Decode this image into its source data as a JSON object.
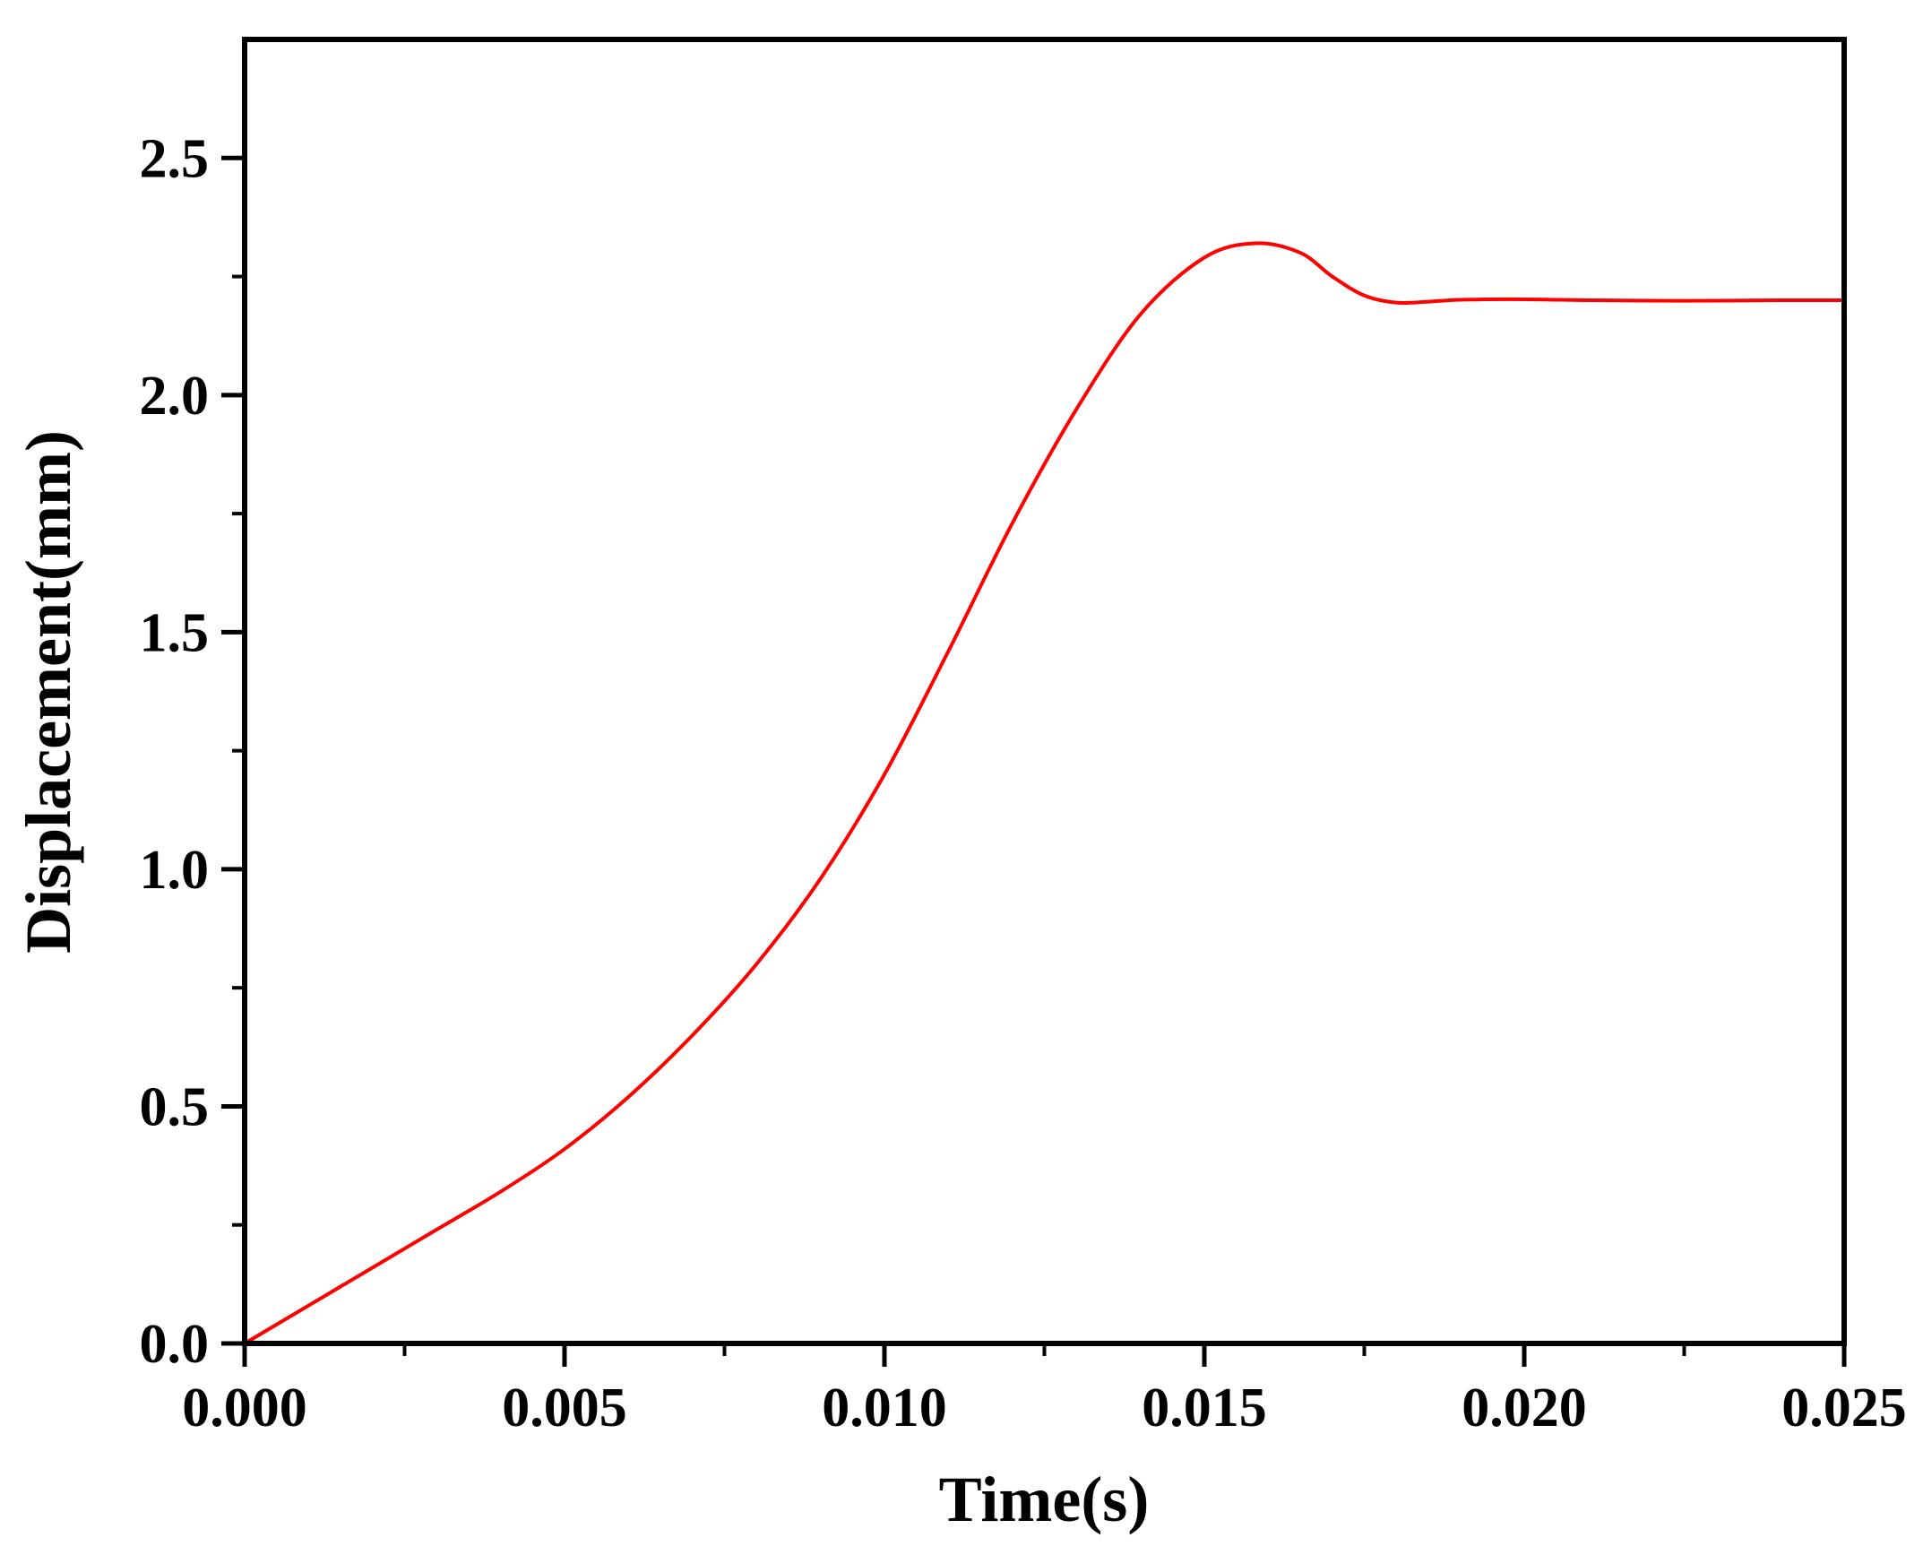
{
  "chart_data": {
    "type": "line",
    "title": "",
    "xlabel": "Time(s)",
    "ylabel": "Displacement(mm)",
    "xlim": [
      0,
      0.025
    ],
    "ylim": [
      0,
      2.75
    ],
    "x_ticks": [
      0,
      0.005,
      0.01,
      0.015,
      0.02,
      0.025
    ],
    "x_tick_labels": [
      "0.000",
      "0.005",
      "0.010",
      "0.015",
      "0.020",
      "0.025"
    ],
    "y_ticks": [
      0,
      0.5,
      1.0,
      1.5,
      2.0,
      2.5
    ],
    "y_tick_labels": [
      "0.0",
      "0.5",
      "1.0",
      "1.5",
      "2.0",
      "2.5"
    ],
    "grid": false,
    "legend": "none",
    "series": [
      {
        "color": "#ff0000",
        "x": [
          0,
          0.001,
          0.002,
          0.003,
          0.004,
          0.005,
          0.006,
          0.007,
          0.008,
          0.009,
          0.01,
          0.011,
          0.012,
          0.013,
          0.014,
          0.015,
          0.0158,
          0.0165,
          0.017,
          0.0175,
          0.018,
          0.0185,
          0.019,
          0.02,
          0.021,
          0.022,
          0.023,
          0.024,
          0.025
        ],
        "y": [
          0,
          0.08,
          0.16,
          0.24,
          0.32,
          0.41,
          0.52,
          0.65,
          0.8,
          0.98,
          1.2,
          1.46,
          1.73,
          1.97,
          2.17,
          2.29,
          2.32,
          2.3,
          2.25,
          2.21,
          2.195,
          2.197,
          2.201,
          2.202,
          2.2,
          2.199,
          2.199,
          2.2,
          2.2
        ]
      }
    ]
  }
}
